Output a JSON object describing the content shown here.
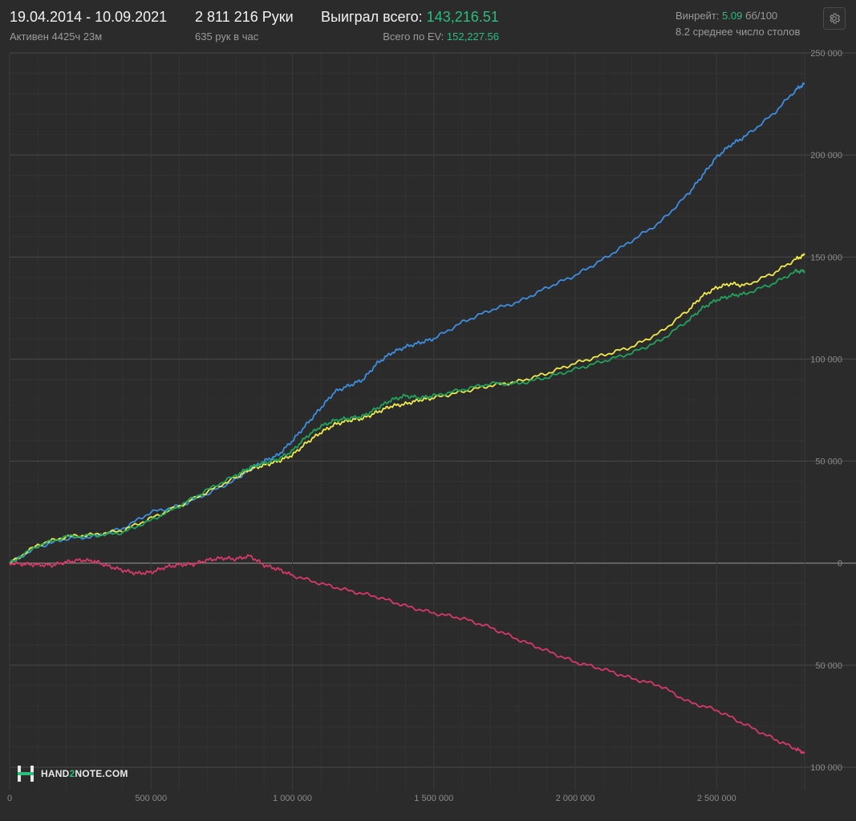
{
  "header": {
    "date_range": "19.04.2014 - 10.09.2021",
    "active": "Активен 4425ч 23м",
    "hands": "2 811 216 Руки",
    "hands_per_hour": "635 рук в час",
    "won_label": "Выиграл всего:",
    "won_value": "143,216.51",
    "ev_label": "Всего по EV:",
    "ev_value": "152,227.56",
    "winrate_label": "Винрейт:",
    "winrate_value": "5.09",
    "winrate_unit": "бб/100",
    "avg_tables": "8.2 среднее число столов",
    "settings_icon": "gear-icon"
  },
  "logo": {
    "text_a": "HAND",
    "text_b": "2",
    "text_c": "NOTE.COM"
  },
  "colors": {
    "background": "#2b2b2b",
    "blue": "#3d8ee0",
    "yellow": "#f0e94a",
    "green": "#21a35e",
    "red": "#d8386a",
    "accent_green": "#2bbd7e"
  },
  "chart_data": {
    "type": "line",
    "xlim": [
      0,
      2811216
    ],
    "ylim": [
      -100000,
      250000
    ],
    "x_ticks": [
      0,
      500000,
      1000000,
      1500000,
      2000000,
      2500000
    ],
    "x_tick_labels": [
      "0",
      "500 000",
      "1 000 000",
      "1 500 000",
      "2 000 000",
      "2 500 000"
    ],
    "y_ticks": [
      250000,
      200000,
      150000,
      100000,
      50000,
      0,
      -50000,
      -100000
    ],
    "y_tick_labels": [
      "250 000",
      "200 000",
      "150 000",
      "100 000",
      "50 000",
      "0",
      "50 000",
      "100 000"
    ],
    "grid": true,
    "series": [
      {
        "color": "#3d8ee0",
        "x": [
          0,
          100000,
          200000,
          300000,
          400000,
          500000,
          600000,
          700000,
          800000,
          850000,
          900000,
          950000,
          1000000,
          1050000,
          1100000,
          1150000,
          1200000,
          1250000,
          1300000,
          1350000,
          1400000,
          1450000,
          1500000,
          1600000,
          1700000,
          1800000,
          1900000,
          2000000,
          2100000,
          2200000,
          2300000,
          2400000,
          2450000,
          2500000,
          2550000,
          2600000,
          2700000,
          2780000,
          2811216
        ],
        "y": [
          0,
          8000,
          12000,
          13000,
          17000,
          25000,
          28000,
          34000,
          41000,
          46000,
          50000,
          53000,
          60000,
          68000,
          76000,
          84000,
          87000,
          90000,
          98000,
          103000,
          106000,
          108000,
          110000,
          118000,
          124000,
          128000,
          135000,
          141000,
          149000,
          158000,
          167000,
          181000,
          190000,
          199000,
          205000,
          209000,
          220000,
          232000,
          235000
        ]
      },
      {
        "color": "#f0e94a",
        "x": [
          0,
          100000,
          200000,
          300000,
          400000,
          500000,
          600000,
          700000,
          800000,
          850000,
          900000,
          950000,
          1000000,
          1050000,
          1100000,
          1150000,
          1200000,
          1250000,
          1300000,
          1350000,
          1400000,
          1450000,
          1500000,
          1600000,
          1700000,
          1800000,
          1900000,
          2000000,
          2100000,
          2200000,
          2300000,
          2400000,
          2450000,
          2500000,
          2550000,
          2600000,
          2700000,
          2780000,
          2811216
        ],
        "y": [
          0,
          9000,
          13000,
          14000,
          16000,
          22000,
          28000,
          35000,
          42000,
          46000,
          48000,
          50000,
          53000,
          59000,
          64000,
          68000,
          70000,
          71000,
          74000,
          77000,
          78000,
          80000,
          81000,
          84000,
          87000,
          89000,
          93000,
          98000,
          102000,
          106000,
          113000,
          124000,
          131000,
          135000,
          137000,
          136000,
          142000,
          149000,
          151000
        ]
      },
      {
        "color": "#21a35e",
        "x": [
          0,
          100000,
          200000,
          300000,
          400000,
          500000,
          600000,
          700000,
          800000,
          850000,
          900000,
          950000,
          1000000,
          1050000,
          1100000,
          1150000,
          1200000,
          1250000,
          1300000,
          1350000,
          1400000,
          1450000,
          1500000,
          1600000,
          1700000,
          1800000,
          1900000,
          2000000,
          2100000,
          2200000,
          2300000,
          2400000,
          2450000,
          2500000,
          2550000,
          2600000,
          2700000,
          2780000,
          2811216
        ],
        "y": [
          0,
          8500,
          13000,
          13500,
          15000,
          21000,
          28000,
          36000,
          43000,
          47000,
          49000,
          51000,
          55000,
          62000,
          67000,
          70000,
          71000,
          72000,
          76000,
          80000,
          82000,
          81000,
          82000,
          85000,
          88000,
          88000,
          91000,
          95000,
          99000,
          103000,
          109000,
          119000,
          125000,
          129000,
          131000,
          132000,
          137000,
          143000,
          143000
        ]
      },
      {
        "color": "#d8386a",
        "x": [
          0,
          50000,
          100000,
          150000,
          200000,
          250000,
          300000,
          350000,
          400000,
          450000,
          500000,
          550000,
          600000,
          650000,
          700000,
          750000,
          800000,
          850000,
          900000,
          950000,
          1000000,
          1100000,
          1200000,
          1300000,
          1400000,
          1500000,
          1600000,
          1700000,
          1800000,
          1900000,
          2000000,
          2100000,
          2200000,
          2300000,
          2400000,
          2500000,
          2600000,
          2700000,
          2780000,
          2811216
        ],
        "y": [
          0,
          -500,
          -800,
          -1000,
          500,
          1500,
          1000,
          -1500,
          -3500,
          -5000,
          -4500,
          -2000,
          -800,
          -500,
          1500,
          2500,
          2000,
          3500,
          -1000,
          -3000,
          -6000,
          -10000,
          -13500,
          -16500,
          -21000,
          -24500,
          -27000,
          -31500,
          -37500,
          -43000,
          -48500,
          -52000,
          -56500,
          -60000,
          -68000,
          -72000,
          -79000,
          -86000,
          -91000,
          -93000
        ]
      }
    ]
  }
}
